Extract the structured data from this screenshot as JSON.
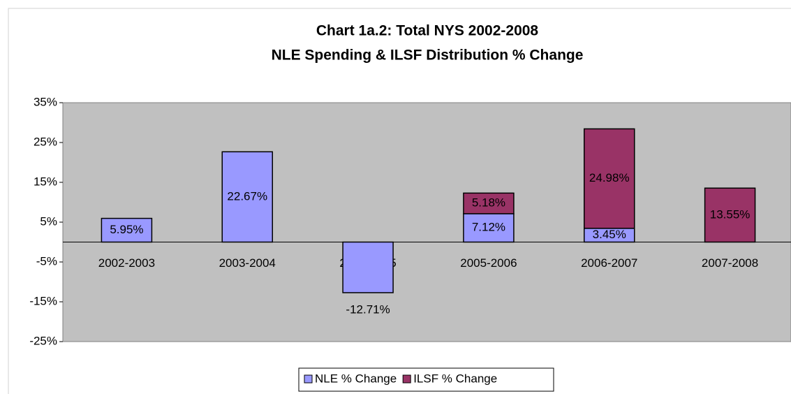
{
  "chart_data": {
    "type": "stacked_bar",
    "title": "Chart 1a.2: Total NYS 2002-2008",
    "subtitle": "NLE Spending & ILSF Distribution % Change",
    "categories": [
      "2002-2003",
      "2003-2004",
      "2004-2005",
      "2005-2006",
      "2006-2007",
      "2007-2008"
    ],
    "series": [
      {
        "name": "NLE % Change",
        "color": "#9999ff",
        "values": [
          5.95,
          22.67,
          -12.71,
          7.12,
          3.45,
          null
        ],
        "value_labels": [
          "5.95%",
          "22.67%",
          "-12.71%",
          "7.12%",
          "3.45%",
          null
        ]
      },
      {
        "name": "ILSF % Change",
        "color": "#993366",
        "values": [
          null,
          null,
          null,
          5.18,
          24.98,
          13.55
        ],
        "value_labels": [
          null,
          null,
          null,
          "5.18%",
          "24.98%",
          "13.55%"
        ]
      }
    ],
    "ylim": [
      -25,
      35
    ],
    "yticks": [
      {
        "value": 35,
        "label": "35%"
      },
      {
        "value": 25,
        "label": "25%"
      },
      {
        "value": 15,
        "label": "15%"
      },
      {
        "value": 5,
        "label": "5%"
      },
      {
        "value": -5,
        "label": "-5%"
      },
      {
        "value": -15,
        "label": "-15%"
      },
      {
        "value": -25,
        "label": "-25%"
      }
    ],
    "legend": "bottom"
  }
}
